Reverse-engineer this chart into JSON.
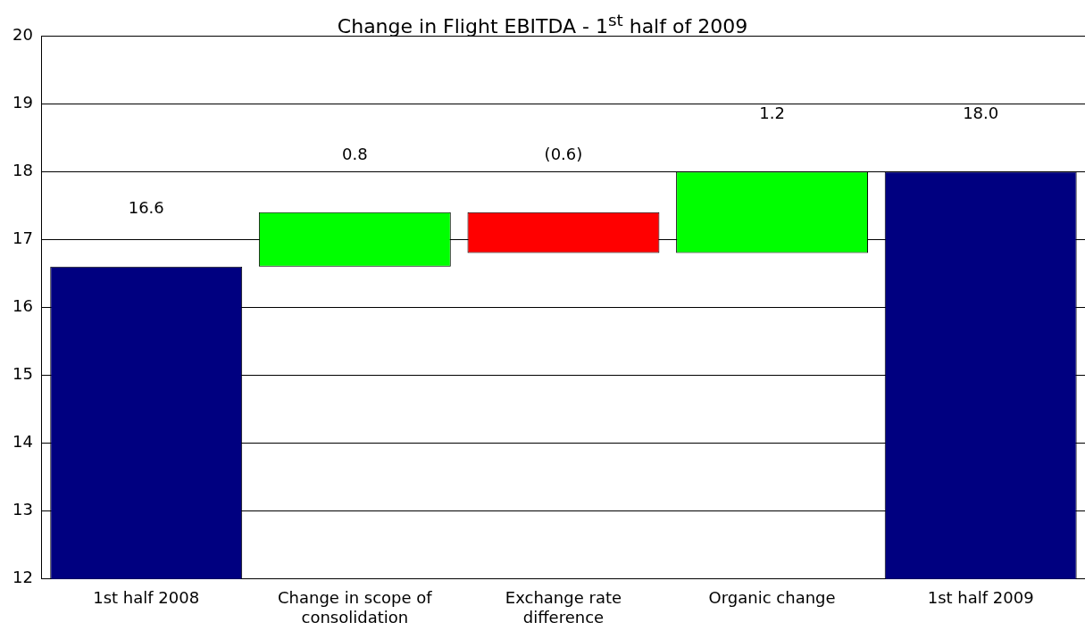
{
  "chart_data": {
    "type": "bar",
    "title": "Change in Flight EBITDA - 1$^{st}$ half of 2009",
    "categories": [
      "1st half 2008",
      "Change in scope of consolidation",
      "Exchange rate difference",
      "Organic change",
      "1st half 2009"
    ],
    "values": [
      16.6,
      0.8,
      -0.6,
      1.2,
      18.0
    ],
    "base": [
      0,
      16.6,
      17.4,
      16.8,
      0
    ],
    "colors": [
      "#000080",
      "#00ff00",
      "#ff0000",
      "#00ff00",
      "#000080"
    ],
    "value_labels": [
      "16.6",
      "0.8",
      "(0.6)",
      "1.2",
      "18.0"
    ],
    "ylim": [
      12,
      20
    ],
    "yticks": [
      12,
      13,
      14,
      15,
      16,
      17,
      18,
      19,
      20
    ],
    "grid": "y",
    "legend": false
  }
}
